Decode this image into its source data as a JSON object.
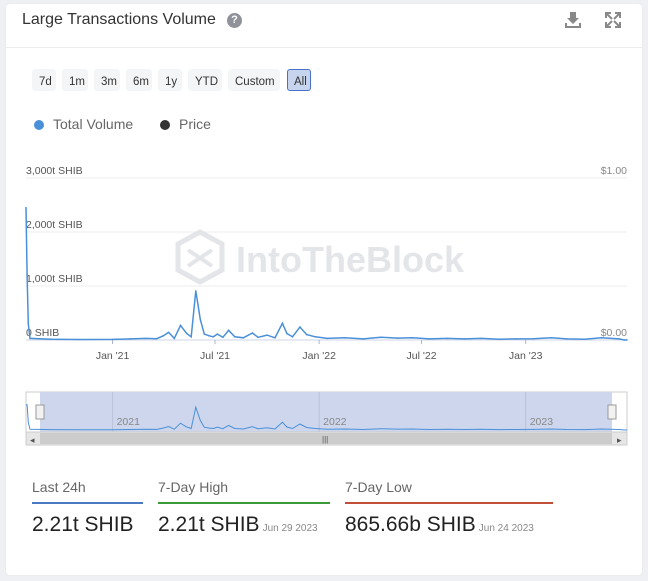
{
  "header": {
    "title": "Large Transactions Volume",
    "help_glyph": "?",
    "download_icon": "download-icon",
    "expand_icon": "expand-icon"
  },
  "ranges": [
    {
      "label": "7d",
      "active": false
    },
    {
      "label": "1m",
      "active": false
    },
    {
      "label": "3m",
      "active": false
    },
    {
      "label": "6m",
      "active": false
    },
    {
      "label": "1y",
      "active": false
    },
    {
      "label": "YTD",
      "active": false
    },
    {
      "label": "Custom",
      "active": false
    },
    {
      "label": "All",
      "active": true
    }
  ],
  "legend": [
    {
      "label": "Total Volume",
      "color": "#4a90d9"
    },
    {
      "label": "Price",
      "color": "#333333"
    }
  ],
  "watermark": "IntoTheBlock",
  "chart_data": {
    "type": "line",
    "y_left": {
      "ticks": [
        "0 SHIB",
        "1,000t SHIB",
        "2,000t SHIB",
        "3,000t SHIB"
      ],
      "range": [
        0,
        3000
      ],
      "unit": "t SHIB"
    },
    "y_right": {
      "ticks": [
        "$0.00",
        "$1.00"
      ],
      "range": [
        0,
        1
      ]
    },
    "x_ticks": [
      {
        "label": "Jan '21",
        "date": "2021-01-01"
      },
      {
        "label": "Jul '21",
        "date": "2021-07-01"
      },
      {
        "label": "Jan '22",
        "date": "2022-01-01"
      },
      {
        "label": "Jul '22",
        "date": "2022-07-01"
      },
      {
        "label": "Jan '23",
        "date": "2023-01-01"
      }
    ],
    "x_range": [
      "2020-08-01",
      "2023-06-29"
    ],
    "grid": true,
    "legend_position": "top-left",
    "series": [
      {
        "name": "Total Volume",
        "color": "#4a90d9",
        "points": [
          [
            "2020-08-01",
            2450
          ],
          [
            "2020-08-03",
            1200
          ],
          [
            "2020-08-05",
            300
          ],
          [
            "2020-08-08",
            30
          ],
          [
            "2020-09-15",
            15
          ],
          [
            "2020-11-01",
            10
          ],
          [
            "2021-01-01",
            12
          ],
          [
            "2021-02-01",
            20
          ],
          [
            "2021-03-01",
            30
          ],
          [
            "2021-03-20",
            25
          ],
          [
            "2021-04-01",
            80
          ],
          [
            "2021-04-10",
            140
          ],
          [
            "2021-04-20",
            30
          ],
          [
            "2021-05-01",
            270
          ],
          [
            "2021-05-12",
            120
          ],
          [
            "2021-05-20",
            60
          ],
          [
            "2021-05-28",
            910
          ],
          [
            "2021-06-05",
            380
          ],
          [
            "2021-06-12",
            110
          ],
          [
            "2021-06-20",
            80
          ],
          [
            "2021-06-28",
            60
          ],
          [
            "2021-07-05",
            110
          ],
          [
            "2021-07-15",
            50
          ],
          [
            "2021-07-25",
            180
          ],
          [
            "2021-08-05",
            60
          ],
          [
            "2021-08-20",
            40
          ],
          [
            "2021-09-05",
            130
          ],
          [
            "2021-09-15",
            50
          ],
          [
            "2021-10-01",
            90
          ],
          [
            "2021-10-15",
            40
          ],
          [
            "2021-10-28",
            310
          ],
          [
            "2021-11-05",
            120
          ],
          [
            "2021-11-15",
            60
          ],
          [
            "2021-11-28",
            240
          ],
          [
            "2021-12-10",
            100
          ],
          [
            "2021-12-25",
            60
          ],
          [
            "2022-01-15",
            30
          ],
          [
            "2022-02-15",
            40
          ],
          [
            "2022-03-20",
            20
          ],
          [
            "2022-04-20",
            50
          ],
          [
            "2022-05-20",
            35
          ],
          [
            "2022-06-15",
            40
          ],
          [
            "2022-07-15",
            20
          ],
          [
            "2022-08-15",
            30
          ],
          [
            "2022-09-15",
            20
          ],
          [
            "2022-10-15",
            30
          ],
          [
            "2022-11-15",
            15
          ],
          [
            "2022-12-15",
            20
          ],
          [
            "2023-01-15",
            25
          ],
          [
            "2023-02-15",
            40
          ],
          [
            "2023-03-15",
            20
          ],
          [
            "2023-04-15",
            15
          ],
          [
            "2023-05-15",
            40
          ],
          [
            "2023-06-15",
            20
          ],
          [
            "2023-06-24",
            0.87
          ],
          [
            "2023-06-29",
            2.21
          ]
        ]
      }
    ],
    "navigator": {
      "labels": [
        "2021",
        "2022",
        "2023"
      ],
      "scroll_left_glyph": "◂",
      "scroll_right_glyph": "▸",
      "grip_glyph": "|||"
    }
  },
  "stats": [
    {
      "label": "Last 24h",
      "value": "2.21t SHIB",
      "date": "",
      "color": "#4a78c2"
    },
    {
      "label": "7-Day High",
      "value": "2.21t SHIB",
      "date": "Jun 29 2023",
      "color": "#3a9a3a"
    },
    {
      "label": "7-Day Low",
      "value": "865.66b SHIB",
      "date": "Jun 24 2023",
      "color": "#c0503a"
    }
  ]
}
